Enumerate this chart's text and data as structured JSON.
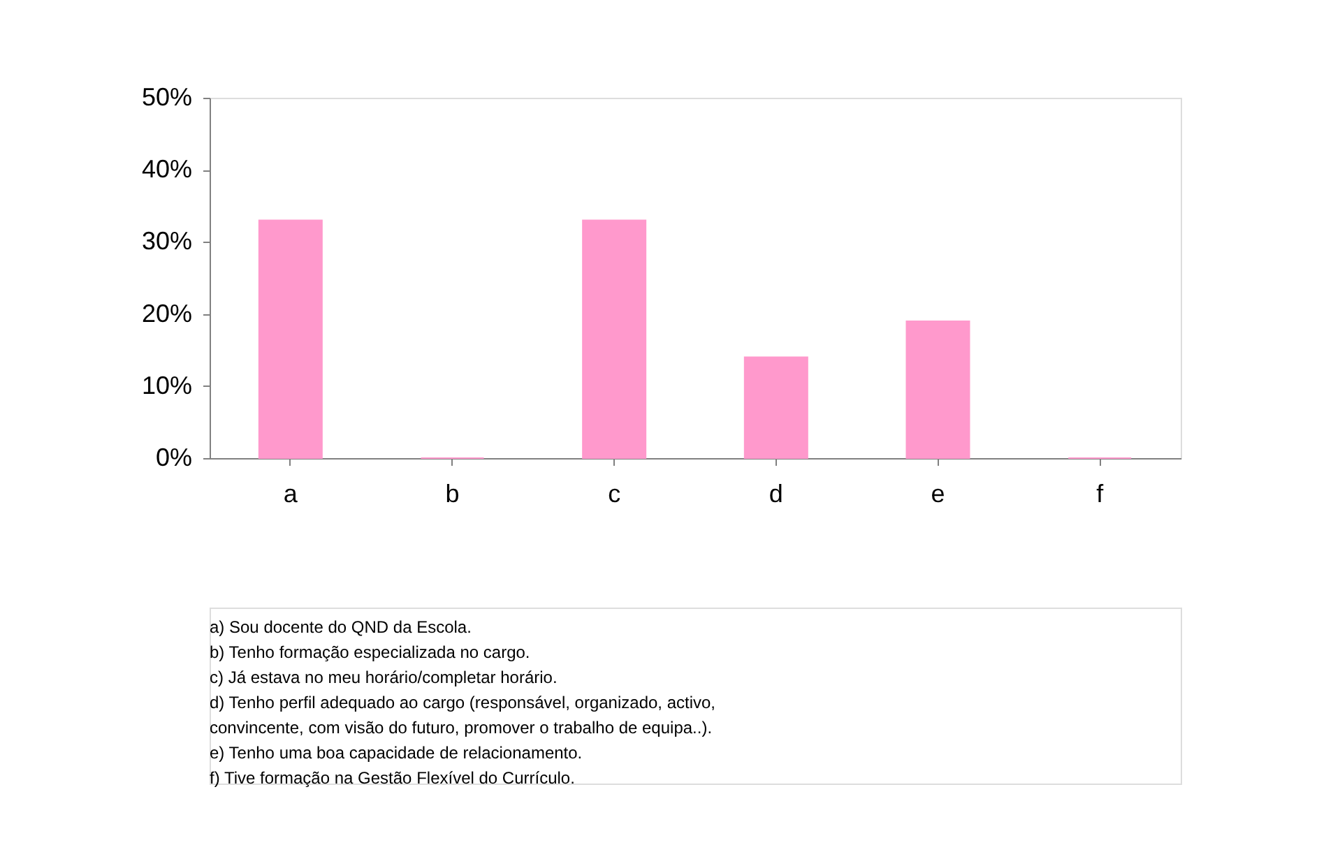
{
  "chart_data": {
    "type": "bar",
    "categories": [
      "a",
      "b",
      "c",
      "d",
      "e",
      "f"
    ],
    "values": [
      33,
      0,
      33,
      14,
      19,
      0
    ],
    "color": "#ff99cc",
    "ylim": [
      0,
      50
    ],
    "yticks": [
      {
        "value": 0,
        "label": "0%"
      },
      {
        "value": 10,
        "label": "10%"
      },
      {
        "value": 20,
        "label": "20%"
      },
      {
        "value": 30,
        "label": "30%"
      },
      {
        "value": 40,
        "label": "40%"
      },
      {
        "value": 50,
        "label": "50%"
      }
    ],
    "grid": false,
    "annotations": [
      "a) Sou docente do QND da Escola.",
      "b) Tenho formação especializada no cargo.",
      "c) Já estava no meu horário/completar horário.",
      "d) Tenho perfil adequado ao cargo (responsável, organizado, activo,",
      "convincente, com visão do futuro, promover o trabalho de equipa..).",
      "e) Tenho uma boa capacidade de relacionamento.",
      "f) Tive formação na Gestão Flexível do Currículo."
    ]
  }
}
